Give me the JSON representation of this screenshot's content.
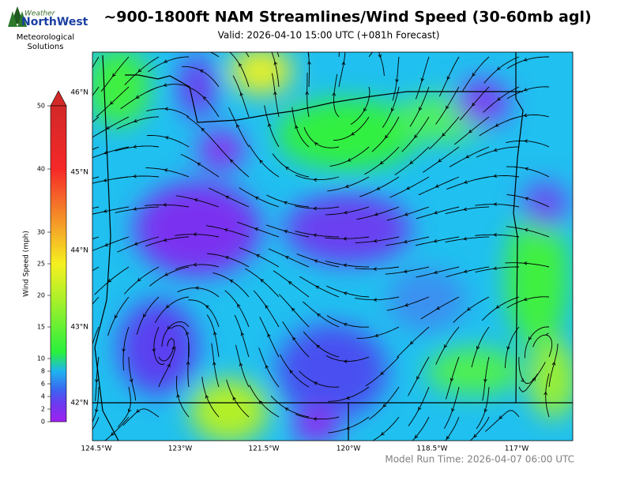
{
  "logo": {
    "line1": "Weather",
    "line2": "NorthWest",
    "subtitle": "Meteorological Solutions"
  },
  "title": "~900-1800ft NAM Streamlines/Wind Speed (30-60mb agl)",
  "valid": "Valid: 2026-04-10 15:00 UTC  (+081h Forecast)",
  "colorbar": {
    "label": "Wind Speed (mph)",
    "lim": [
      0,
      50
    ],
    "ticks": [
      0,
      2,
      4,
      6,
      8,
      10,
      15,
      20,
      25,
      30,
      40,
      50
    ]
  },
  "lat_labels": [
    "46°N",
    "45°N",
    "44°N",
    "43°N",
    "42°N"
  ],
  "lon_labels": [
    "124.5°W",
    "123°W",
    "121.5°W",
    "120°W",
    "118.5°W",
    "117°W"
  ],
  "footer": "Model Run Time: 2026-04-07 06:00 UTC"
}
